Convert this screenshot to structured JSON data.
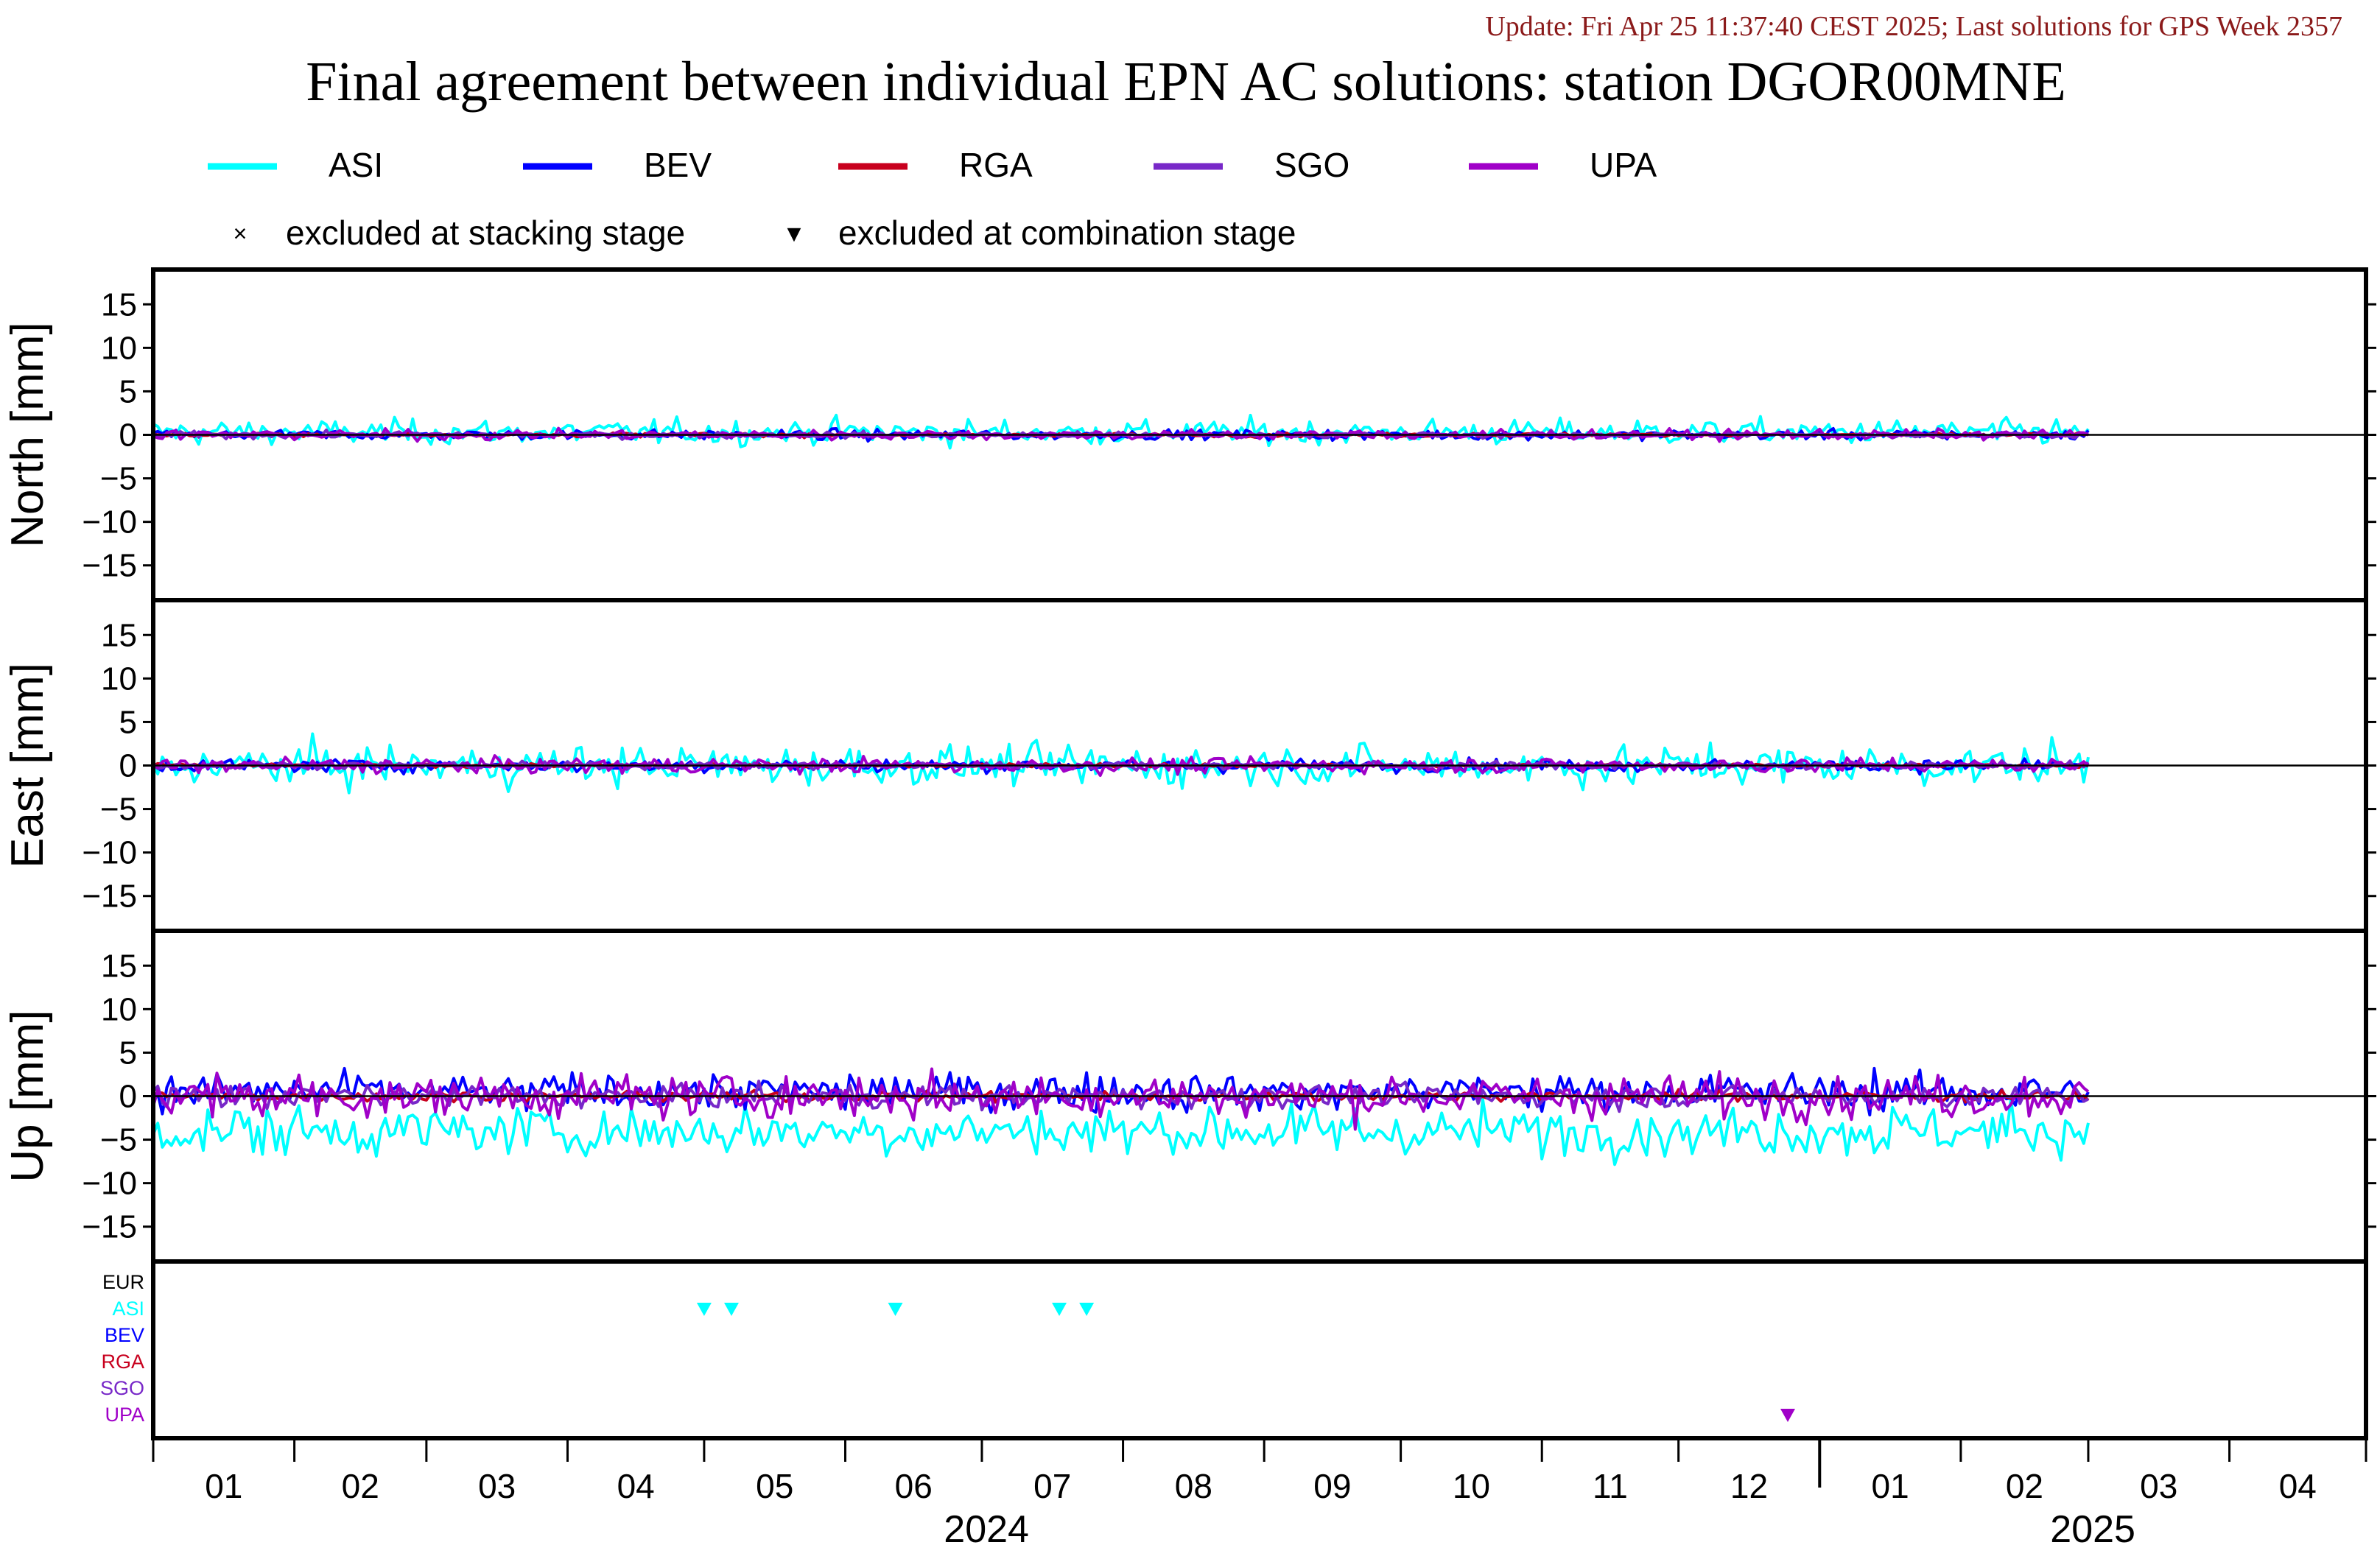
{
  "header": {
    "update_text": "Update: Fri Apr 25 11:37:40 CEST 2025; Last solutions for GPS Week 2357",
    "title": "Final agreement between individual EPN AC solutions: station DGOR00MNE"
  },
  "legend": {
    "items": [
      {
        "name": "ASI",
        "color": "#00ffff"
      },
      {
        "name": "BEV",
        "color": "#0000ff"
      },
      {
        "name": "RGA",
        "color": "#c8001e"
      },
      {
        "name": "SGO",
        "color": "#7828c8"
      },
      {
        "name": "UPA",
        "color": "#a000c8"
      }
    ],
    "markers": [
      {
        "symbol": "×",
        "label": "excluded at stacking stage"
      },
      {
        "symbol": "▼",
        "label": "excluded at combination stage"
      }
    ]
  },
  "chart_data": {
    "type": "line",
    "x_range": [
      "2024-01-01",
      "2025-05-01"
    ],
    "x_months": [
      {
        "label": "01",
        "start": "2024-01-01",
        "end": "2024-02-01"
      },
      {
        "label": "02",
        "start": "2024-02-01",
        "end": "2024-03-01"
      },
      {
        "label": "03",
        "start": "2024-03-01",
        "end": "2024-04-01"
      },
      {
        "label": "04",
        "start": "2024-04-01",
        "end": "2024-05-01"
      },
      {
        "label": "05",
        "start": "2024-05-01",
        "end": "2024-06-01"
      },
      {
        "label": "06",
        "start": "2024-06-01",
        "end": "2024-07-01"
      },
      {
        "label": "07",
        "start": "2024-07-01",
        "end": "2024-08-01"
      },
      {
        "label": "08",
        "start": "2024-08-01",
        "end": "2024-09-01"
      },
      {
        "label": "09",
        "start": "2024-09-01",
        "end": "2024-10-01"
      },
      {
        "label": "10",
        "start": "2024-10-01",
        "end": "2024-11-01"
      },
      {
        "label": "11",
        "start": "2024-11-01",
        "end": "2024-12-01"
      },
      {
        "label": "12",
        "start": "2024-12-01",
        "end": "2025-01-01"
      },
      {
        "label": "01",
        "start": "2025-01-01",
        "end": "2025-02-01"
      },
      {
        "label": "02",
        "start": "2025-02-01",
        "end": "2025-03-01"
      },
      {
        "label": "03",
        "start": "2025-03-01",
        "end": "2025-04-01"
      },
      {
        "label": "04",
        "start": "2025-04-01",
        "end": "2025-05-01"
      }
    ],
    "x_years": [
      {
        "label": "2024",
        "start": "2024-01-01",
        "end": "2025-01-01"
      },
      {
        "label": "2025",
        "start": "2025-01-01",
        "end": "2025-05-01"
      }
    ],
    "data_end": "2025-03-01",
    "panels": [
      {
        "ylabel": "North [mm]",
        "ylim": [
          -19,
          19
        ],
        "yticks": [
          15,
          10,
          5,
          0,
          -5,
          -10,
          -15
        ],
        "series": [
          {
            "name": "ASI",
            "color": "#00ffff",
            "mean": 0.3,
            "noise": 1.0
          },
          {
            "name": "BEV",
            "color": "#0000ff",
            "mean": 0.0,
            "noise": 0.4
          },
          {
            "name": "RGA",
            "color": "#c8001e",
            "mean": 0.0,
            "noise": 0.15
          },
          {
            "name": "SGO",
            "color": "#7828c8",
            "mean": 0.0,
            "noise": 0.25
          },
          {
            "name": "UPA",
            "color": "#a000c8",
            "mean": 0.0,
            "noise": 0.4
          }
        ]
      },
      {
        "ylabel": "East [mm]",
        "ylim": [
          -19,
          19
        ],
        "yticks": [
          15,
          10,
          5,
          0,
          -5,
          -10,
          -15
        ],
        "series": [
          {
            "name": "ASI",
            "color": "#00ffff",
            "mean": 0.0,
            "noise": 1.6
          },
          {
            "name": "BEV",
            "color": "#0000ff",
            "mean": 0.0,
            "noise": 0.5
          },
          {
            "name": "RGA",
            "color": "#c8001e",
            "mean": 0.0,
            "noise": 0.15
          },
          {
            "name": "SGO",
            "color": "#7828c8",
            "mean": 0.0,
            "noise": 0.3
          },
          {
            "name": "UPA",
            "color": "#a000c8",
            "mean": 0.0,
            "noise": 0.6
          }
        ]
      },
      {
        "ylabel": "Up [mm]",
        "ylim": [
          -19,
          19
        ],
        "yticks": [
          15,
          10,
          5,
          0,
          -5,
          -10,
          -15
        ],
        "series": [
          {
            "name": "ASI",
            "color": "#00ffff",
            "mean": -4.0,
            "noise": 2.0
          },
          {
            "name": "BEV",
            "color": "#0000ff",
            "mean": 0.5,
            "noise": 1.5
          },
          {
            "name": "RGA",
            "color": "#c8001e",
            "mean": 0.0,
            "noise": 0.4
          },
          {
            "name": "SGO",
            "color": "#7828c8",
            "mean": 0.0,
            "noise": 0.9
          },
          {
            "name": "UPA",
            "color": "#a000c8",
            "mean": 0.0,
            "noise": 1.7
          }
        ]
      }
    ],
    "exclusion_rows": [
      {
        "label": "EUR",
        "color": "#000000"
      },
      {
        "label": "ASI",
        "color": "#00ffff"
      },
      {
        "label": "BEV",
        "color": "#0000ff"
      },
      {
        "label": "RGA",
        "color": "#c8001e"
      },
      {
        "label": "SGO",
        "color": "#7828c8"
      },
      {
        "label": "UPA",
        "color": "#a000c8"
      }
    ],
    "exclusions": [
      {
        "row": "ASI",
        "date": "2024-05-01",
        "marker": "combination"
      },
      {
        "row": "ASI",
        "date": "2024-05-07",
        "marker": "combination"
      },
      {
        "row": "ASI",
        "date": "2024-06-12",
        "marker": "combination"
      },
      {
        "row": "ASI",
        "date": "2024-07-18",
        "marker": "combination"
      },
      {
        "row": "ASI",
        "date": "2024-07-24",
        "marker": "combination"
      },
      {
        "row": "UPA",
        "date": "2024-12-25",
        "marker": "combination"
      }
    ]
  }
}
